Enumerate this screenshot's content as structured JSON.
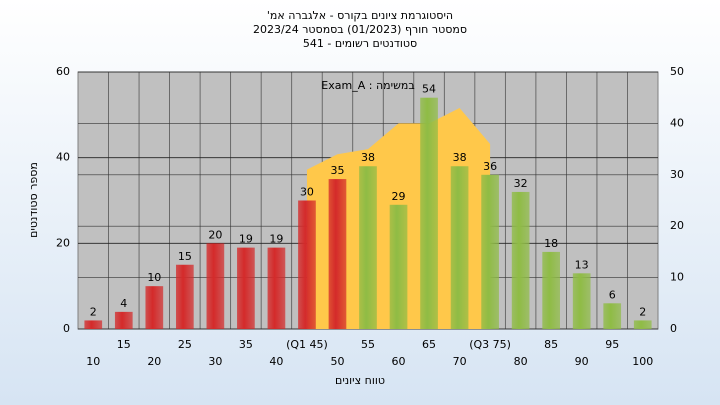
{
  "chart_data": {
    "type": "bar",
    "title": "היסטוגרמת ציונים בקורס - אלגברה אמ'",
    "subtitle": "סמסטר חורף (01/2023) בסמסטר 2023/24",
    "subtitle2": "סטודנטים רשומים - 541",
    "annotation": "במשימה : Exam_A",
    "x_label": "טווח ציונים",
    "y_label": "מספר סטודנטים",
    "categories": [
      "10",
      "15",
      "20",
      "25",
      "30",
      "35",
      "40",
      "(Q1 45)",
      "50",
      "55",
      "60",
      "65",
      "70",
      "(Q3 75)",
      "80",
      "85",
      "90",
      "95",
      "100"
    ],
    "values": [
      2,
      4,
      10,
      15,
      20,
      19,
      19,
      30,
      35,
      38,
      29,
      54,
      38,
      36,
      32,
      18,
      13,
      6,
      2
    ],
    "colors": [
      "#d42a2a",
      "#d42a2a",
      "#d42a2a",
      "#d42a2a",
      "#d42a2a",
      "#d42a2a",
      "#d42a2a",
      "#d42a2a",
      "#d42a2a",
      "#8fbc45",
      "#8fbc45",
      "#8fbc45",
      "#8fbc45",
      "#8fbc45",
      "#8fbc45",
      "#8fbc45",
      "#8fbc45",
      "#8fbc45",
      "#8fbc45"
    ],
    "area": {
      "color": "#ffc84a",
      "axis": "y2",
      "values": [
        null,
        null,
        null,
        null,
        null,
        null,
        null,
        31,
        34,
        35,
        40,
        40,
        43,
        36,
        null,
        null,
        null,
        null,
        null
      ]
    },
    "ylim": [
      0,
      60
    ],
    "yticks": [
      0,
      20,
      40,
      60
    ],
    "y2lim": [
      0,
      50
    ],
    "y2ticks": [
      0,
      10,
      20,
      30,
      40,
      50
    ],
    "grid": true
  }
}
